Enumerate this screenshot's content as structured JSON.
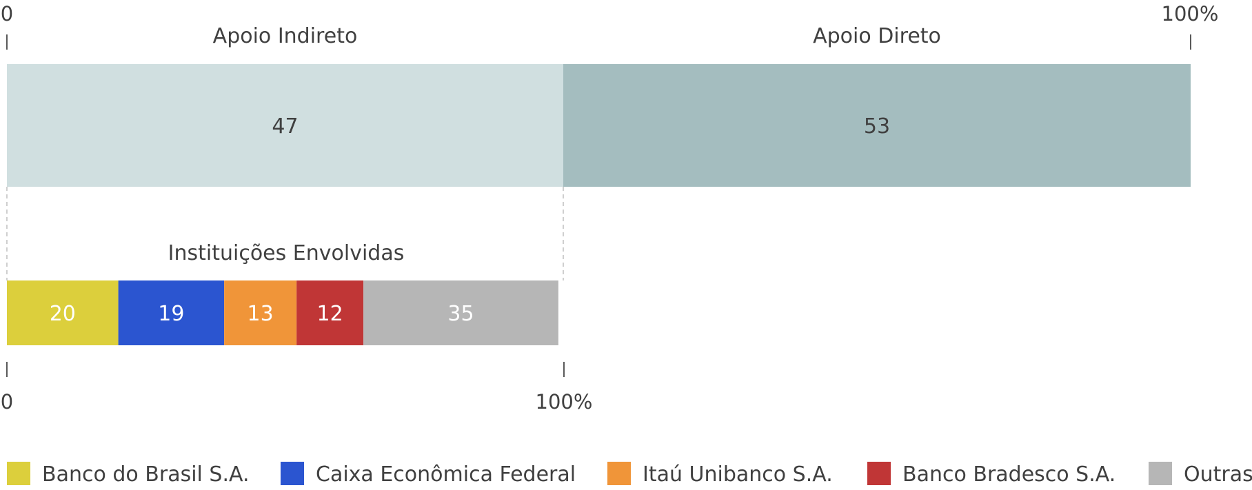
{
  "chart_data": [
    {
      "type": "bar",
      "orientation": "horizontal",
      "stacked": true,
      "axis_min_label": "0",
      "axis_max_label": "100%",
      "xlim": [
        0,
        100
      ],
      "categories": [
        "Apoio Indireto",
        "Apoio Direto"
      ],
      "values": [
        47,
        53
      ],
      "colors": [
        "#d0dfe0",
        "#a4bdbf"
      ],
      "value_label_color": "#404040"
    },
    {
      "type": "bar",
      "orientation": "horizontal",
      "stacked": true,
      "title": "Instituições Envolvidas",
      "axis_min_label": "0",
      "axis_max_label": "100%",
      "xlim": [
        0,
        100
      ],
      "categories": [
        "Banco do Brasil S.A.",
        "Caixa Econômica Federal",
        "Itaú Unibanco S.A.",
        "Banco Bradesco S.A.",
        "Outras"
      ],
      "values": [
        20,
        19,
        13,
        12,
        35
      ],
      "colors": [
        "#dccf3c",
        "#2b55d0",
        "#f09539",
        "#c03636",
        "#b6b6b6"
      ],
      "value_label_color": "#ffffff"
    }
  ],
  "legend": {
    "position": "bottom",
    "items": [
      {
        "label": "Banco do Brasil S.A.",
        "color": "#dccf3c"
      },
      {
        "label": "Caixa Econômica Federal",
        "color": "#2b55d0"
      },
      {
        "label": "Itaú Unibanco S.A.",
        "color": "#f09539"
      },
      {
        "label": "Banco Bradesco S.A.",
        "color": "#c03636"
      },
      {
        "label": "Outras",
        "color": "#b6b6b6"
      }
    ]
  }
}
